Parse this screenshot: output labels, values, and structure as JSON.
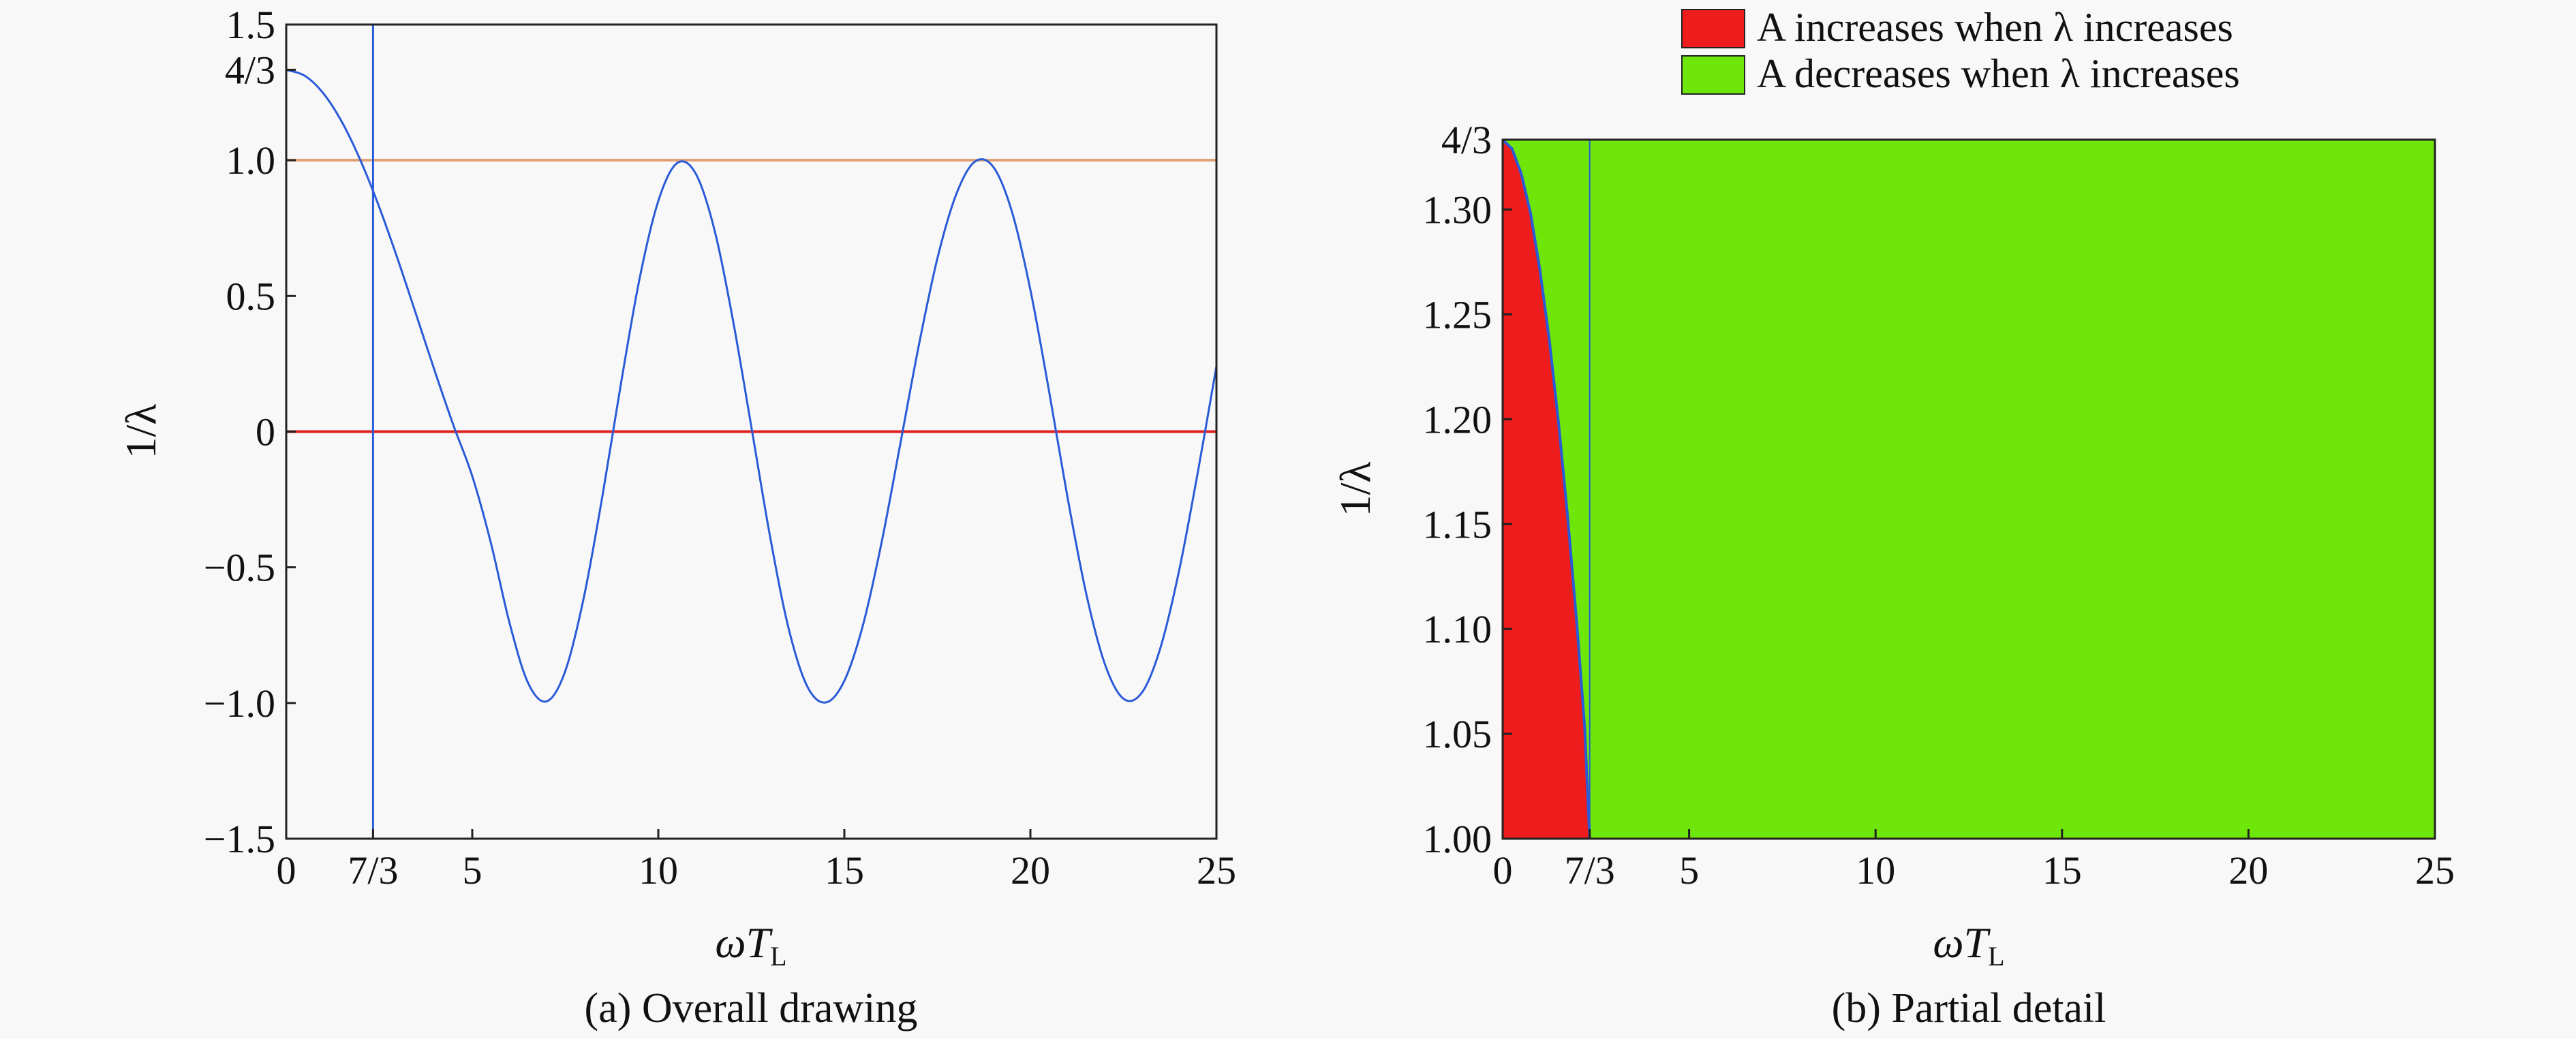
{
  "chart_data": [
    {
      "type": "line",
      "caption": "(a) Overall drawing",
      "xlabel": "ωT",
      "xlabel_sub": "L",
      "ylabel": "1/λ",
      "xlim": [
        0,
        25
      ],
      "ylim": [
        -1.5,
        1.5
      ],
      "x_ticks": [
        {
          "value": 0,
          "label": "0"
        },
        {
          "value": 2.3333,
          "label": "7/3"
        },
        {
          "value": 5,
          "label": "5"
        },
        {
          "value": 10,
          "label": "10"
        },
        {
          "value": 15,
          "label": "15"
        },
        {
          "value": 20,
          "label": "20"
        },
        {
          "value": 25,
          "label": "25"
        }
      ],
      "y_ticks": [
        {
          "value": 1.5,
          "label": "1.5"
        },
        {
          "value": 1.3333,
          "label": "4/3"
        },
        {
          "value": 1.0,
          "label": "1.0"
        },
        {
          "value": 0.5,
          "label": "0.5"
        },
        {
          "value": 0,
          "label": "0"
        },
        {
          "value": -0.5,
          "label": "−0.5"
        },
        {
          "value": -1.0,
          "label": "−1.0"
        },
        {
          "value": -1.5,
          "label": "−1.5"
        }
      ],
      "curve": {
        "color": "#2a5bd7",
        "x": [
          0,
          0.5,
          1,
          1.5,
          2,
          2.5,
          3,
          3.5,
          4,
          4.5,
          5,
          5.5,
          6,
          6.5,
          7,
          7.5,
          8,
          8.5,
          9,
          9.5,
          10,
          10.5,
          11,
          11.5,
          12,
          12.5,
          13,
          13.5,
          14,
          14.5,
          15,
          15.5,
          16,
          16.5,
          17,
          17.5,
          18,
          18.5,
          19,
          19.5,
          20,
          20.5,
          21,
          21.5,
          22,
          22.5,
          23,
          23.5,
          24,
          24.5,
          25
        ],
        "y": [
          1.333,
          1.311,
          1.246,
          1.14,
          0.998,
          0.827,
          0.634,
          0.428,
          0.22,
          0.021,
          -0.164,
          -0.41,
          -0.704,
          -0.926,
          -0.994,
          -0.882,
          -0.61,
          -0.236,
          0.18,
          0.566,
          0.85,
          0.989,
          0.952,
          0.748,
          0.415,
          0.018,
          -0.384,
          -0.724,
          -0.938,
          -0.998,
          -0.918,
          -0.713,
          -0.409,
          -0.048,
          0.317,
          0.638,
          0.872,
          0.994,
          0.976,
          0.812,
          0.522,
          0.15,
          -0.244,
          -0.597,
          -0.856,
          -0.984,
          -0.961,
          -0.794,
          -0.51,
          -0.149,
          0.241
        ]
      },
      "h_lines": [
        {
          "value": 1.0,
          "color": "#e0a070"
        },
        {
          "value": 0,
          "color": "#e02020"
        }
      ],
      "v_lines": [
        {
          "value": 2.3333,
          "color": "#2a5bd7"
        }
      ]
    },
    {
      "type": "area",
      "caption": "(b) Partial detail",
      "xlabel": "ωT",
      "xlabel_sub": "L",
      "ylabel": "1/λ",
      "xlim": [
        0,
        25
      ],
      "ylim": [
        1.0,
        1.3333
      ],
      "x_ticks": [
        {
          "value": 0,
          "label": "0"
        },
        {
          "value": 2.3333,
          "label": "7/3"
        },
        {
          "value": 5,
          "label": "5"
        },
        {
          "value": 10,
          "label": "10"
        },
        {
          "value": 15,
          "label": "15"
        },
        {
          "value": 20,
          "label": "20"
        },
        {
          "value": 25,
          "label": "25"
        }
      ],
      "y_ticks": [
        {
          "value": 1.3333,
          "label": "4/3"
        },
        {
          "value": 1.3,
          "label": "1.30"
        },
        {
          "value": 1.25,
          "label": "1.25"
        },
        {
          "value": 1.2,
          "label": "1.20"
        },
        {
          "value": 1.15,
          "label": "1.15"
        },
        {
          "value": 1.1,
          "label": "1.10"
        },
        {
          "value": 1.05,
          "label": "1.05"
        },
        {
          "value": 1.0,
          "label": "1.00"
        }
      ],
      "regions": [
        {
          "name": "A increases when λ increases",
          "color": "#ee1c1c",
          "x": [
            0,
            0.25,
            0.5,
            0.75,
            1.0,
            1.25,
            1.5,
            1.75,
            2.0,
            2.2,
            2.3333,
            0
          ],
          "y": [
            1.3333,
            1.329,
            1.317,
            1.298,
            1.271,
            1.238,
            1.198,
            1.152,
            1.1,
            1.053,
            1.0,
            1.0
          ]
        },
        {
          "name": "A decreases when λ increases",
          "color": "#6fe60a"
        }
      ],
      "boundary_color": "#2a5bd7",
      "v_lines": [
        {
          "value": 2.3333,
          "color": "#2a5bd7"
        }
      ],
      "legend": {
        "position": "top",
        "entries": [
          {
            "name": "A increases when λ increases",
            "color": "#ee1c1c"
          },
          {
            "name": "A decreases when λ increases",
            "color": "#6fe60a"
          }
        ]
      }
    }
  ]
}
